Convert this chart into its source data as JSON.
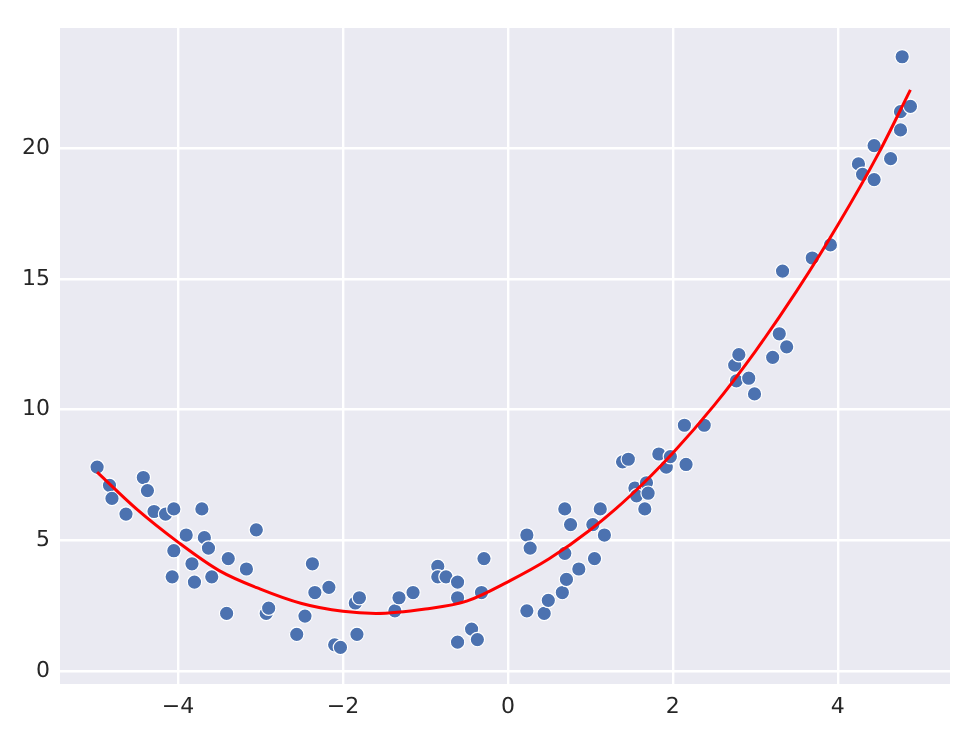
{
  "chart_data": {
    "type": "scatter",
    "xlim": [
      -5.43,
      5.36
    ],
    "ylim": [
      -0.5,
      24.6
    ],
    "xticks": [
      {
        "value": -4,
        "label": "−4"
      },
      {
        "value": -2,
        "label": "−2"
      },
      0,
      2,
      4
    ],
    "yticks": [
      0,
      5,
      10,
      15,
      20
    ],
    "grid": true,
    "legend": false,
    "series": [
      {
        "color": "#4c72b0",
        "marker": "circle",
        "x": [
          -4.98,
          -4.83,
          -4.8,
          -4.63,
          -4.42,
          -4.37,
          -4.29,
          -4.15,
          -4.05,
          -4.05,
          -4.07,
          -3.9,
          -3.83,
          -3.8,
          -3.71,
          -3.68,
          -3.63,
          -3.59,
          -3.41,
          -3.39,
          -3.17,
          -3.05,
          -2.93,
          -2.9,
          -2.56,
          -2.46,
          -2.37,
          -2.34,
          -2.17,
          -2.1,
          -2.03,
          -1.85,
          -1.8,
          -1.83,
          -1.37,
          -1.32,
          -1.15,
          -0.85,
          -0.85,
          -0.75,
          -0.61,
          -0.61,
          -0.61,
          -0.44,
          -0.37,
          -0.32,
          -0.29,
          0.23,
          0.27,
          0.23,
          0.44,
          0.49,
          0.66,
          0.69,
          0.69,
          0.71,
          0.76,
          0.86,
          1.03,
          1.05,
          1.12,
          1.17,
          1.39,
          1.46,
          1.54,
          1.56,
          1.66,
          1.68,
          1.7,
          1.83,
          1.92,
          1.97,
          2.14,
          2.16,
          2.38,
          2.75,
          2.8,
          2.77,
          2.92,
          2.99,
          3.21,
          3.29,
          3.38,
          3.33,
          3.69,
          3.91,
          4.25,
          4.3,
          4.44,
          4.44,
          4.64,
          4.76,
          4.76,
          4.88,
          4.78
        ],
        "values": [
          7.8,
          7.1,
          6.6,
          6.0,
          7.4,
          6.9,
          6.1,
          6.0,
          6.2,
          4.6,
          3.6,
          5.2,
          4.1,
          3.4,
          6.2,
          5.1,
          4.7,
          3.6,
          2.2,
          4.3,
          3.9,
          5.4,
          2.2,
          2.4,
          1.4,
          2.1,
          4.1,
          3.0,
          3.2,
          1.0,
          0.9,
          2.6,
          2.8,
          1.4,
          2.3,
          2.8,
          3.0,
          4.0,
          3.6,
          3.6,
          3.4,
          2.8,
          1.1,
          1.6,
          1.2,
          3.0,
          4.3,
          5.2,
          4.7,
          2.3,
          2.2,
          2.7,
          3.0,
          4.5,
          6.2,
          3.5,
          5.6,
          3.9,
          5.6,
          4.3,
          6.2,
          5.2,
          8.0,
          8.1,
          7.0,
          6.7,
          6.2,
          7.2,
          6.8,
          8.3,
          7.8,
          8.2,
          9.4,
          7.9,
          9.4,
          11.7,
          12.1,
          11.1,
          11.2,
          10.6,
          12.0,
          12.9,
          12.4,
          15.3,
          15.8,
          16.3,
          19.4,
          19.0,
          20.1,
          18.8,
          19.6,
          20.7,
          21.4,
          21.6,
          23.5
        ]
      },
      {
        "type": "line",
        "color": "#ff0000",
        "marker": "none",
        "line_style": "solid",
        "x": [
          -4.98,
          -4.5,
          -4,
          -3.5,
          -3,
          -2.5,
          -2,
          -1.6,
          -1,
          -0.5,
          0,
          0.5,
          1,
          1.5,
          2,
          2.5,
          3,
          3.5,
          4,
          4.5,
          4.88
        ],
        "values": [
          7.61,
          6.19,
          4.93,
          3.84,
          3.13,
          2.58,
          2.28,
          2.2,
          2.37,
          2.67,
          3.41,
          4.29,
          5.4,
          6.75,
          8.34,
          10.16,
          12.23,
          14.53,
          17.06,
          19.84,
          22.23
        ]
      }
    ]
  }
}
